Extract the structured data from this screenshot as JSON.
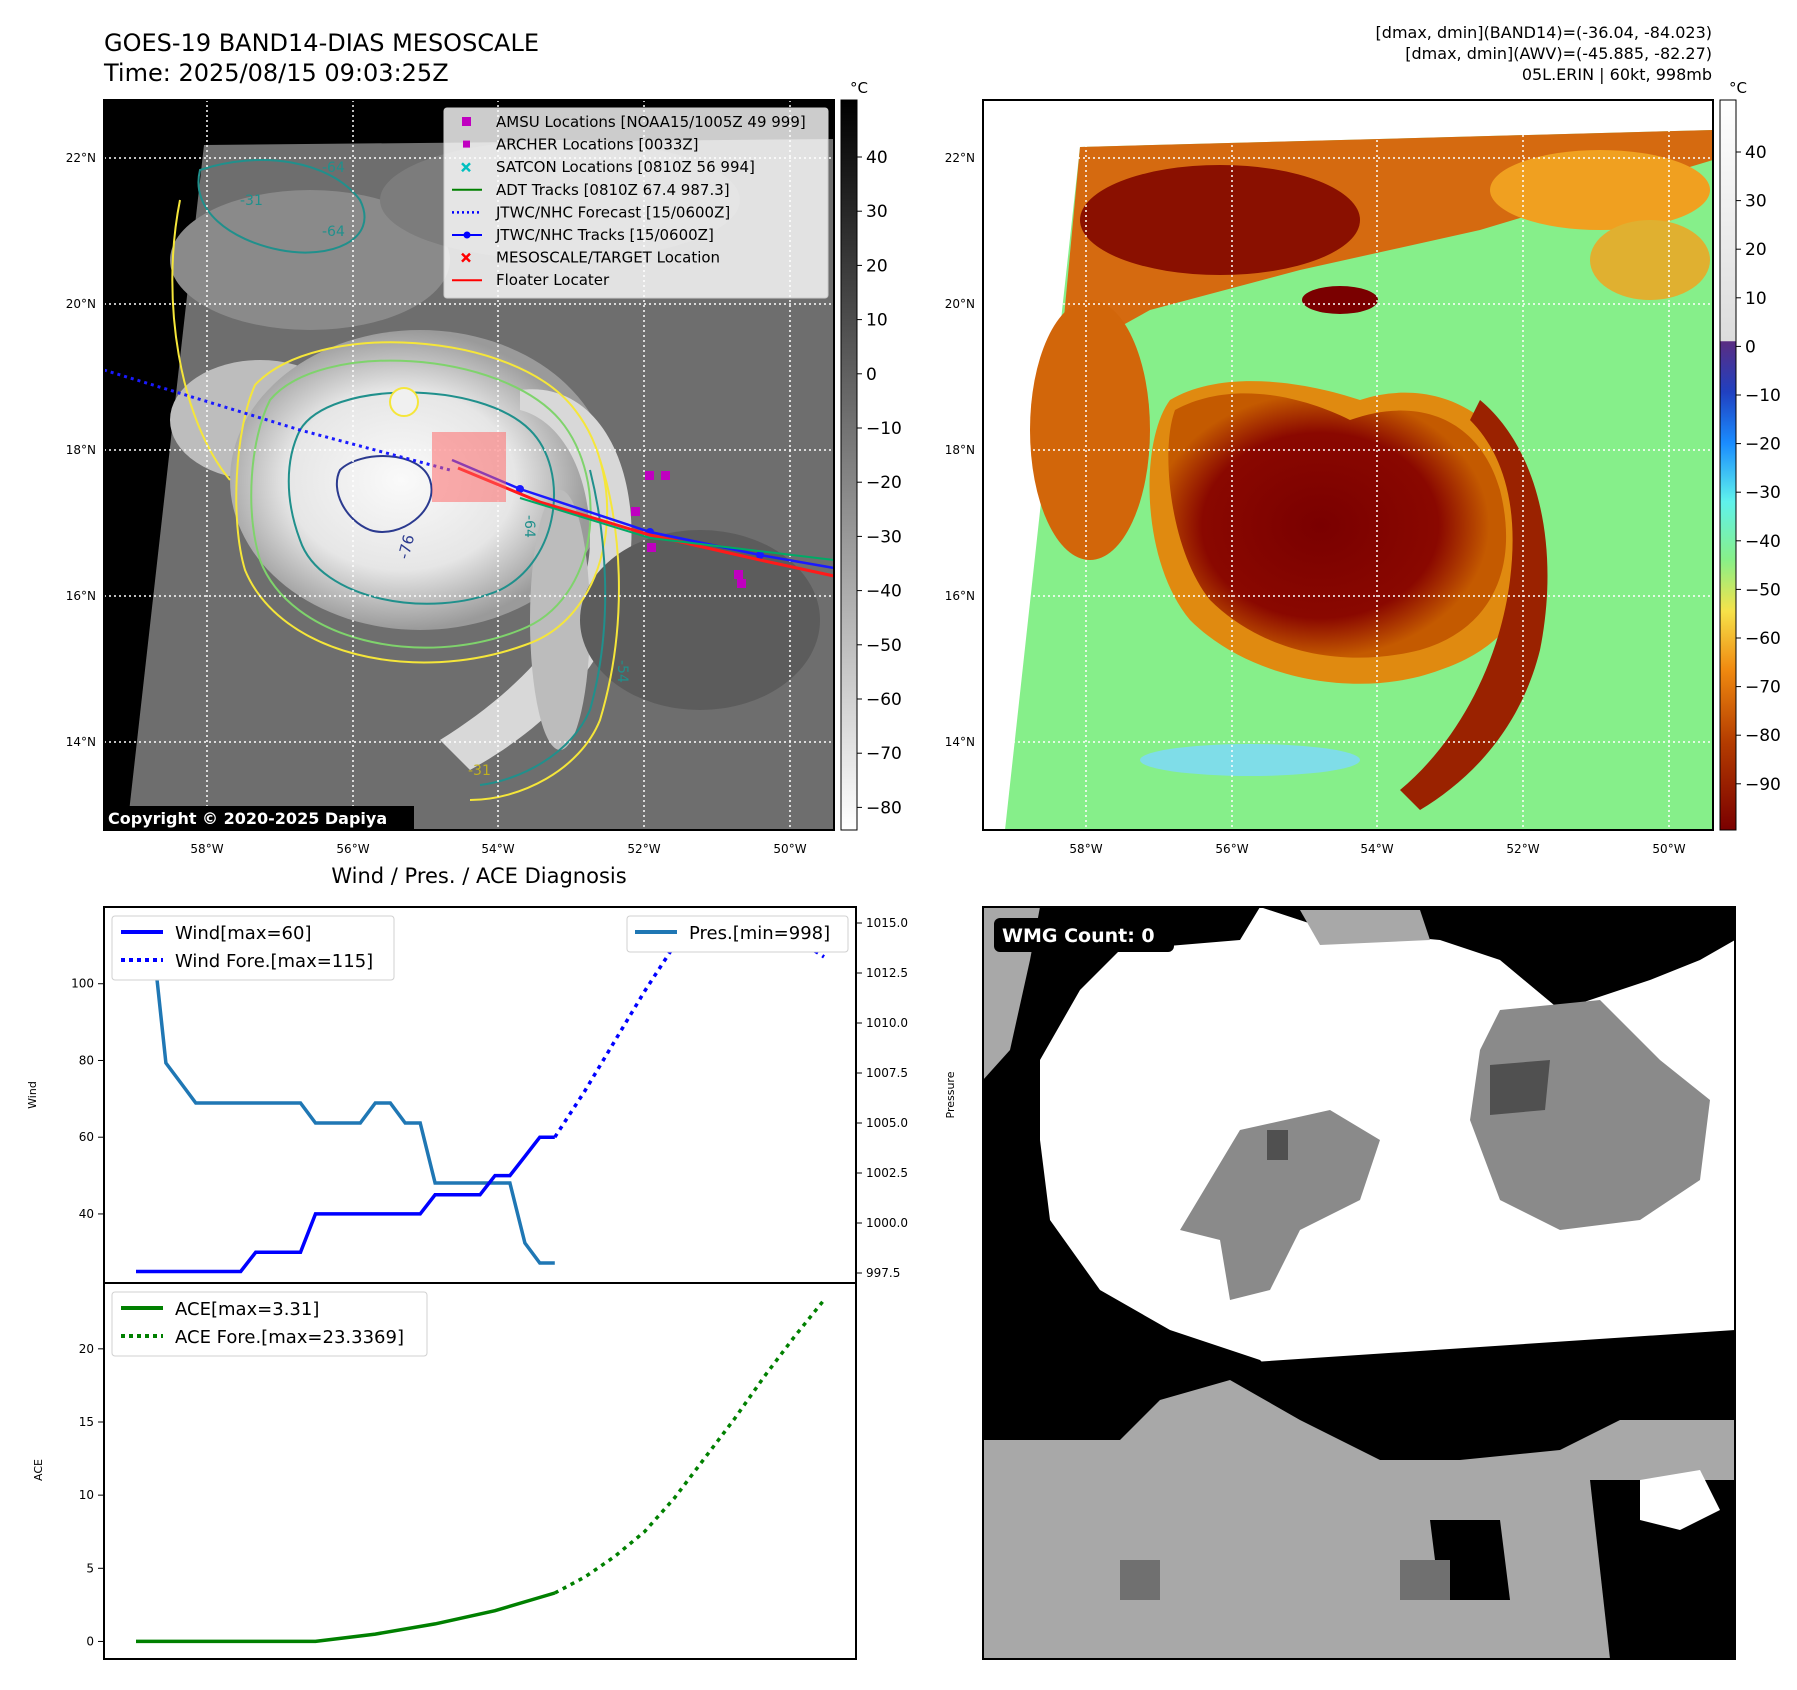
{
  "header": {
    "title_line1": "GOES-19 BAND14-DIAS MESOSCALE",
    "title_line2": "Time: 2025/08/15 09:03:25Z",
    "stats_line1": "[dmax, dmin](BAND14)=(-36.04, -84.023)",
    "stats_line2": "[dmax, dmin](AWV)=(-45.885, -82.27)",
    "stats_line3": "05L.ERIN | 60kt, 998mb"
  },
  "map_panel": {
    "lon_ticks": [
      "58°W",
      "56°W",
      "54°W",
      "52°W",
      "50°W"
    ],
    "lat_ticks": [
      "22°N",
      "20°N",
      "18°N",
      "16°N",
      "14°N"
    ],
    "copyright": "Copyright © 2020-2025 Dapiya",
    "contour_labels": [
      "-64",
      "-64",
      "-31",
      "-76",
      "-64",
      "-54",
      "-31"
    ],
    "legend": [
      {
        "label": "AMSU Locations [NOAA15/1005Z 49 999]",
        "marker": "square",
        "color": "#c000c0"
      },
      {
        "label": "ARCHER Locations [0033Z]",
        "marker": "square-small",
        "color": "#c000c0"
      },
      {
        "label": "SATCON Locations [0810Z 56 994]",
        "marker": "x",
        "color": "#00c0c0"
      },
      {
        "label": "ADT Tracks [0810Z 67.4 987.3]",
        "marker": "line",
        "color": "#008000"
      },
      {
        "label": "JTWC/NHC Forecast [15/0600Z]",
        "marker": "dotted",
        "color": "#0000ff"
      },
      {
        "label": "JTWC/NHC Tracks [15/0600Z]",
        "marker": "line-dot",
        "color": "#0000ff"
      },
      {
        "label": "MESOSCALE/TARGET Location",
        "marker": "x",
        "color": "#ff0000"
      },
      {
        "label": "Floater Locater",
        "marker": "line",
        "color": "#ff0000"
      }
    ]
  },
  "colorbar_gray": {
    "unit": "°C",
    "ticks": [
      "40",
      "30",
      "20",
      "10",
      "0",
      "−10",
      "−20",
      "−30",
      "−40",
      "−50",
      "−60",
      "−70",
      "−80"
    ]
  },
  "colorbar_color": {
    "unit": "°C",
    "ticks": [
      "40",
      "30",
      "20",
      "10",
      "0",
      "−10",
      "−20",
      "−30",
      "−40",
      "−50",
      "−60",
      "−70",
      "−80",
      "−90"
    ]
  },
  "diagnosis": {
    "title": "Wind / Pres. / ACE Diagnosis",
    "wind_ylabel": "Wind",
    "pres_ylabel": "Pressure",
    "ace_ylabel": "ACE",
    "legend_wind": "Wind[max=60]",
    "legend_wind_fore": "Wind Fore.[max=115]",
    "legend_pres": "Pres.[min=998]",
    "legend_ace": "ACE[max=3.31]",
    "legend_ace_fore": "ACE Fore.[max=23.3369]",
    "wind_ticks": [
      "100",
      "80",
      "60",
      "40"
    ],
    "pres_ticks": [
      "1015.0",
      "1012.5",
      "1010.0",
      "1007.5",
      "1005.0",
      "1002.5",
      "1000.0",
      "997.5"
    ],
    "ace_ticks": [
      "20",
      "15",
      "10",
      "5",
      "0"
    ]
  },
  "wmg": {
    "label": "WMG Count: 0"
  },
  "chart_data": [
    {
      "type": "line",
      "title": "Wind / Pres. / ACE Diagnosis",
      "ylabel": "Wind",
      "ylim": [
        22,
        120
      ],
      "x": [
        0,
        1,
        2,
        3,
        4,
        5,
        6,
        7,
        8,
        9,
        10,
        11,
        12,
        13,
        14,
        15,
        16,
        17,
        18,
        19,
        20,
        21,
        22,
        23,
        24,
        25,
        26,
        27,
        28,
        29,
        30,
        31,
        32,
        33,
        34,
        35,
        36,
        37,
        38,
        39,
        40,
        41,
        42,
        43,
        44,
        45,
        46
      ],
      "series": [
        {
          "name": "Wind[max=60]",
          "x": [
            0,
            1,
            2,
            3,
            4,
            5,
            6,
            7,
            8,
            9,
            10,
            11,
            12,
            13,
            14,
            15,
            16,
            17,
            18,
            19,
            20,
            21,
            22,
            23,
            24,
            25,
            26,
            27,
            28
          ],
          "values": [
            25,
            25,
            25,
            25,
            25,
            25,
            25,
            25,
            30,
            30,
            30,
            30,
            40,
            40,
            40,
            40,
            40,
            40,
            40,
            40,
            45,
            45,
            45,
            45,
            50,
            50,
            55,
            60,
            60
          ]
        },
        {
          "name": "Wind Fore.[max=115]",
          "x": [
            28,
            30,
            32,
            34,
            36,
            38,
            40,
            42,
            44,
            46
          ],
          "values": [
            60,
            72,
            85,
            98,
            110,
            115,
            115,
            115,
            112,
            107
          ]
        }
      ]
    },
    {
      "type": "line",
      "ylabel": "Pressure",
      "ylim": [
        997,
        1015.8
      ],
      "series": [
        {
          "name": "Pres.[min=998]",
          "x": [
            0,
            1,
            2,
            3,
            4,
            5,
            6,
            7,
            8,
            9,
            10,
            11,
            12,
            13,
            14,
            15,
            16,
            17,
            18,
            19,
            20,
            21,
            22,
            23,
            24,
            25,
            26,
            27,
            28
          ],
          "values": [
            1015,
            1015,
            1008,
            1007,
            1006,
            1006,
            1006,
            1006,
            1006,
            1006,
            1006,
            1006,
            1005,
            1005,
            1005,
            1005,
            1006,
            1006,
            1005,
            1005,
            1002,
            1002,
            1002,
            1002,
            1002,
            1002,
            999,
            998,
            998
          ]
        }
      ]
    },
    {
      "type": "line",
      "ylabel": "ACE",
      "ylim": [
        -1.2,
        24.5
      ],
      "series": [
        {
          "name": "ACE[max=3.31]",
          "x": [
            0,
            4,
            8,
            12,
            16,
            20,
            24,
            28
          ],
          "values": [
            0,
            0,
            0,
            0,
            0.5,
            1.2,
            2.1,
            3.31
          ]
        },
        {
          "name": "ACE Fore.[max=23.3369]",
          "x": [
            28,
            30,
            32,
            34,
            36,
            38,
            40,
            42,
            44,
            46
          ],
          "values": [
            3.31,
            4.4,
            5.8,
            7.5,
            9.8,
            12.5,
            15.2,
            18.1,
            20.8,
            23.34
          ]
        }
      ]
    }
  ]
}
